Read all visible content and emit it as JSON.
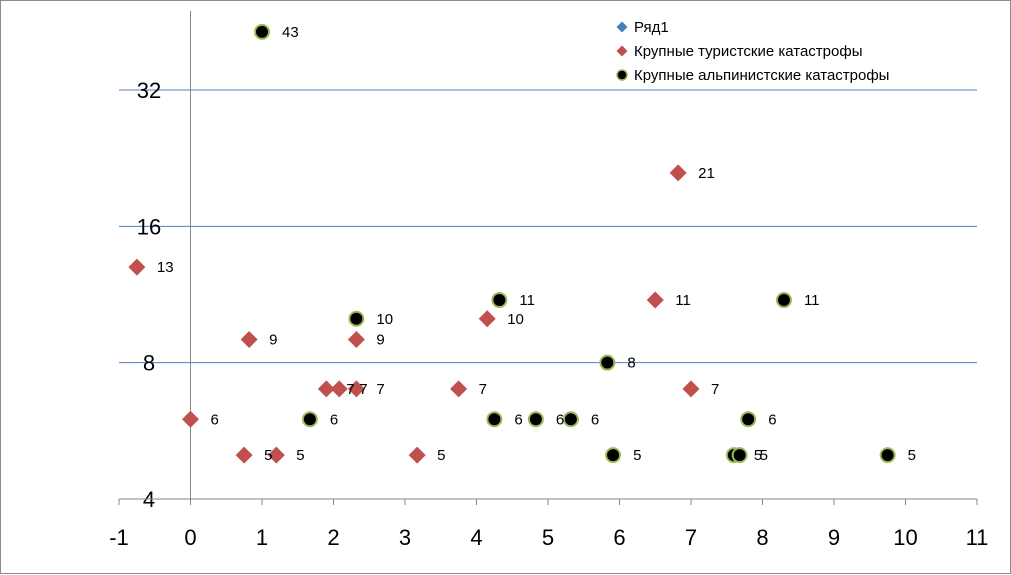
{
  "chart_data": {
    "type": "scatter",
    "title": "",
    "xlabel": "",
    "ylabel": "",
    "xlim": [
      -1,
      11
    ],
    "ylim": [
      4,
      43
    ],
    "y_scale": "log2",
    "grid": "horizontal",
    "legend_position": "top-right",
    "x_ticks": [
      "-1",
      "0",
      "1",
      "2",
      "3",
      "4",
      "5",
      "6",
      "7",
      "8",
      "9",
      "10",
      "11"
    ],
    "y_ticks": [
      "4",
      "8",
      "16",
      "32"
    ],
    "series": [
      {
        "name": "Ряд1",
        "marker": "diamond",
        "color": "#4a7ebb",
        "points": []
      },
      {
        "name": "Крупные туристские катастрофы",
        "marker": "diamond",
        "color": "#c0504d",
        "points": [
          {
            "x": -0.75,
            "y": 13,
            "label": "13"
          },
          {
            "x": 0.0,
            "y": 6,
            "label": "6"
          },
          {
            "x": 0.75,
            "y": 5,
            "label": "5"
          },
          {
            "x": 0.82,
            "y": 9,
            "label": "9"
          },
          {
            "x": 1.2,
            "y": 5,
            "label": "5"
          },
          {
            "x": 1.9,
            "y": 7,
            "label": "7"
          },
          {
            "x": 2.08,
            "y": 7,
            "label": "7"
          },
          {
            "x": 2.32,
            "y": 9,
            "label": "9"
          },
          {
            "x": 2.32,
            "y": 7,
            "label": "7"
          },
          {
            "x": 3.17,
            "y": 5,
            "label": "5"
          },
          {
            "x": 3.75,
            "y": 7,
            "label": "7"
          },
          {
            "x": 4.15,
            "y": 10,
            "label": "10"
          },
          {
            "x": 6.5,
            "y": 11,
            "label": "11"
          },
          {
            "x": 6.82,
            "y": 21,
            "label": "21"
          },
          {
            "x": 7.0,
            "y": 7,
            "label": "7"
          }
        ]
      },
      {
        "name": "Крупные альпинистские катастрофы",
        "marker": "circle",
        "color": "#000000",
        "edge_color": "#9bbb59",
        "points": [
          {
            "x": 1.0,
            "y": 43,
            "label": "43"
          },
          {
            "x": 1.67,
            "y": 6,
            "label": "6"
          },
          {
            "x": 2.32,
            "y": 10,
            "label": "10"
          },
          {
            "x": 4.25,
            "y": 6,
            "label": "6"
          },
          {
            "x": 4.32,
            "y": 11,
            "label": "11"
          },
          {
            "x": 4.83,
            "y": 6,
            "label": "6"
          },
          {
            "x": 5.32,
            "y": 6,
            "label": "6"
          },
          {
            "x": 5.83,
            "y": 8,
            "label": "8"
          },
          {
            "x": 5.91,
            "y": 5,
            "label": "5"
          },
          {
            "x": 7.6,
            "y": 5,
            "label": "5"
          },
          {
            "x": 7.68,
            "y": 5,
            "label": "5"
          },
          {
            "x": 7.8,
            "y": 6,
            "label": "6"
          },
          {
            "x": 8.3,
            "y": 11,
            "label": "11"
          },
          {
            "x": 9.75,
            "y": 5,
            "label": "5"
          }
        ]
      }
    ]
  }
}
